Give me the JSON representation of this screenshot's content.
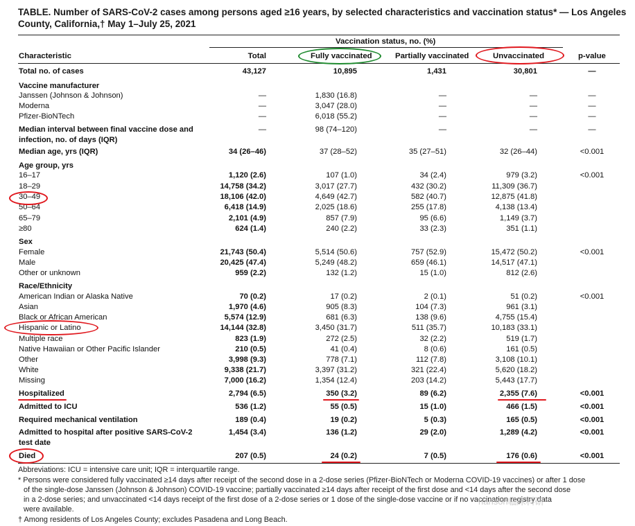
{
  "title": "TABLE. Number of SARS-CoV-2 cases among persons aged ≥16 years, by selected characteristics and vaccination status* — Los Angeles County, California,† May 1–July 25, 2021",
  "header": {
    "group_label": "Vaccination status, no. (%)",
    "col_characteristic": "Characteristic",
    "col_total": "Total",
    "col_full": "Fully vaccinated",
    "col_partial": "Partially vaccinated",
    "col_unvacc": "Unvaccinated",
    "col_p": "p-value"
  },
  "rows": [
    {
      "label": "Total no. of cases",
      "total": "43,127",
      "full": "10,895",
      "partial": "1,431",
      "unvacc": "30,801",
      "p": "—"
    },
    {
      "label": "Vaccine manufacturer"
    },
    {
      "label": "Janssen (Johnson & Johnson)",
      "total": "—",
      "full": "1,830 (16.8)",
      "partial": "—",
      "unvacc": "—",
      "p": "—"
    },
    {
      "label": "Moderna",
      "total": "—",
      "full": "3,047 (28.0)",
      "partial": "—",
      "unvacc": "—",
      "p": "—"
    },
    {
      "label": "Pfizer-BioNTech",
      "total": "—",
      "full": "6,018 (55.2)",
      "partial": "—",
      "unvacc": "—",
      "p": "—"
    },
    {
      "label": "Median interval between final vaccine dose and",
      "total": "—",
      "full": "98 (74–120)",
      "partial": "—",
      "unvacc": "—",
      "p": "—"
    },
    {
      "label": "infection, no. of days (IQR)"
    },
    {
      "label": "Median age, yrs (IQR)",
      "total": "34 (26–46)",
      "full": "37 (28–52)",
      "partial": "35 (27–51)",
      "unvacc": "32 (26–44)",
      "p": "<0.001"
    },
    {
      "label": "Age group, yrs"
    },
    {
      "label": "16–17",
      "total": "1,120 (2.6)",
      "full": "107 (1.0)",
      "partial": "34 (2.4)",
      "unvacc": "979 (3.2)",
      "p": "<0.001"
    },
    {
      "label": "18–29",
      "total": "14,758 (34.2)",
      "full": "3,017 (27.7)",
      "partial": "432 (30.2)",
      "unvacc": "11,309 (36.7)"
    },
    {
      "label": "30–49",
      "total": "18,106 (42.0)",
      "full": "4,649 (42.7)",
      "partial": "582 (40.7)",
      "unvacc": "12,875 (41.8)"
    },
    {
      "label": "50–64",
      "total": "6,418 (14.9)",
      "full": "2,025 (18.6)",
      "partial": "255 (17.8)",
      "unvacc": "4,138 (13.4)"
    },
    {
      "label": "65–79",
      "total": "2,101 (4.9)",
      "full": "857 (7.9)",
      "partial": "95 (6.6)",
      "unvacc": "1,149 (3.7)"
    },
    {
      "label": "≥80",
      "total": "624 (1.4)",
      "full": "240 (2.2)",
      "partial": "33 (2.3)",
      "unvacc": "351 (1.1)"
    },
    {
      "label": "Sex"
    },
    {
      "label": "Female",
      "total": "21,743 (50.4)",
      "full": "5,514 (50.6)",
      "partial": "757 (52.9)",
      "unvacc": "15,472 (50.2)",
      "p": "<0.001"
    },
    {
      "label": "Male",
      "total": "20,425 (47.4)",
      "full": "5,249 (48.2)",
      "partial": "659 (46.1)",
      "unvacc": "14,517 (47.1)"
    },
    {
      "label": "Other or unknown",
      "total": "959 (2.2)",
      "full": "132 (1.2)",
      "partial": "15 (1.0)",
      "unvacc": "812 (2.6)"
    },
    {
      "label": "Race/Ethnicity"
    },
    {
      "label": "American Indian or Alaska Native",
      "total": "70 (0.2)",
      "full": "17 (0.2)",
      "partial": "2 (0.1)",
      "unvacc": "51 (0.2)",
      "p": "<0.001"
    },
    {
      "label": "Asian",
      "total": "1,970 (4.6)",
      "full": "905 (8.3)",
      "partial": "104 (7.3)",
      "unvacc": "961 (3.1)"
    },
    {
      "label": "Black or African American",
      "total": "5,574 (12.9)",
      "full": "681 (6.3)",
      "partial": "138 (9.6)",
      "unvacc": "4,755 (15.4)"
    },
    {
      "label": "Hispanic or Latino",
      "total": "14,144 (32.8)",
      "full": "3,450 (31.7)",
      "partial": "511 (35.7)",
      "unvacc": "10,183 (33.1)"
    },
    {
      "label": "Multiple race",
      "total": "823 (1.9)",
      "full": "272 (2.5)",
      "partial": "32 (2.2)",
      "unvacc": "519 (1.7)"
    },
    {
      "label": "Native Hawaiian or Other Pacific Islander",
      "total": "210 (0.5)",
      "full": "41 (0.4)",
      "partial": "8 (0.6)",
      "unvacc": "161 (0.5)"
    },
    {
      "label": "Other",
      "total": "3,998 (9.3)",
      "full": "778 (7.1)",
      "partial": "112 (7.8)",
      "unvacc": "3,108 (10.1)"
    },
    {
      "label": "White",
      "total": "9,338 (21.7)",
      "full": "3,397 (31.2)",
      "partial": "321 (22.4)",
      "unvacc": "5,620 (18.2)"
    },
    {
      "label": "Missing",
      "total": "7,000 (16.2)",
      "full": "1,354 (12.4)",
      "partial": "203 (14.2)",
      "unvacc": "5,443 (17.7)"
    },
    {
      "label": "Hospitalized",
      "total": "2,794 (6.5)",
      "full": "350 (3.2)",
      "partial": "89 (6.2)",
      "unvacc": "2,355 (7.6)",
      "p": "<0.001"
    },
    {
      "label": "Admitted to ICU",
      "total": "536 (1.2)",
      "full": "55 (0.5)",
      "partial": "15 (1.0)",
      "unvacc": "466 (1.5)",
      "p": "<0.001"
    },
    {
      "label": "Required mechanical ventilation",
      "total": "189 (0.4)",
      "full": "19 (0.2)",
      "partial": "5 (0.3)",
      "unvacc": "165 (0.5)",
      "p": "<0.001"
    },
    {
      "label": "Admitted to hospital after positive SARS-CoV-2",
      "total": "1,454 (3.4)",
      "full": "136 (1.2)",
      "partial": "29 (2.0)",
      "unvacc": "1,289 (4.2)",
      "p": "<0.001"
    },
    {
      "label": "test date"
    },
    {
      "label": "Died",
      "total": "207 (0.5)",
      "full": "24 (0.2)",
      "partial": "7 (0.5)",
      "unvacc": "176 (0.6)",
      "p": "<0.001"
    }
  ],
  "footnotes": {
    "abbreviations": "Abbreviations: ICU = intensive care unit; IQR = interquartile range.",
    "star_1": "* Persons were considered fully vaccinated ≥14 days after receipt of the second dose in a 2-dose series (Pfizer-BioNTech or Moderna COVID-19 vaccines) or after 1 dose",
    "star_2": "of the single-dose Janssen (Johnson & Johnson) COVID-19 vaccine; partially vaccinated ≥14 days after receipt of the first dose and <14 days after the second dose",
    "star_3": "in a 2-dose series; and unvaccinated <14 days receipt of the first dose of a 2-dose series or 1 dose of the single-dose vaccine or if no vaccination registry data",
    "star_4": "were available.",
    "dagger": "† Among residents of Los Angeles County; excludes Pasadena and Long Beach."
  },
  "watermark": "hanson临床科研",
  "annotation_colors": {
    "green": "#1e8a2e",
    "red": "#e0181e"
  }
}
